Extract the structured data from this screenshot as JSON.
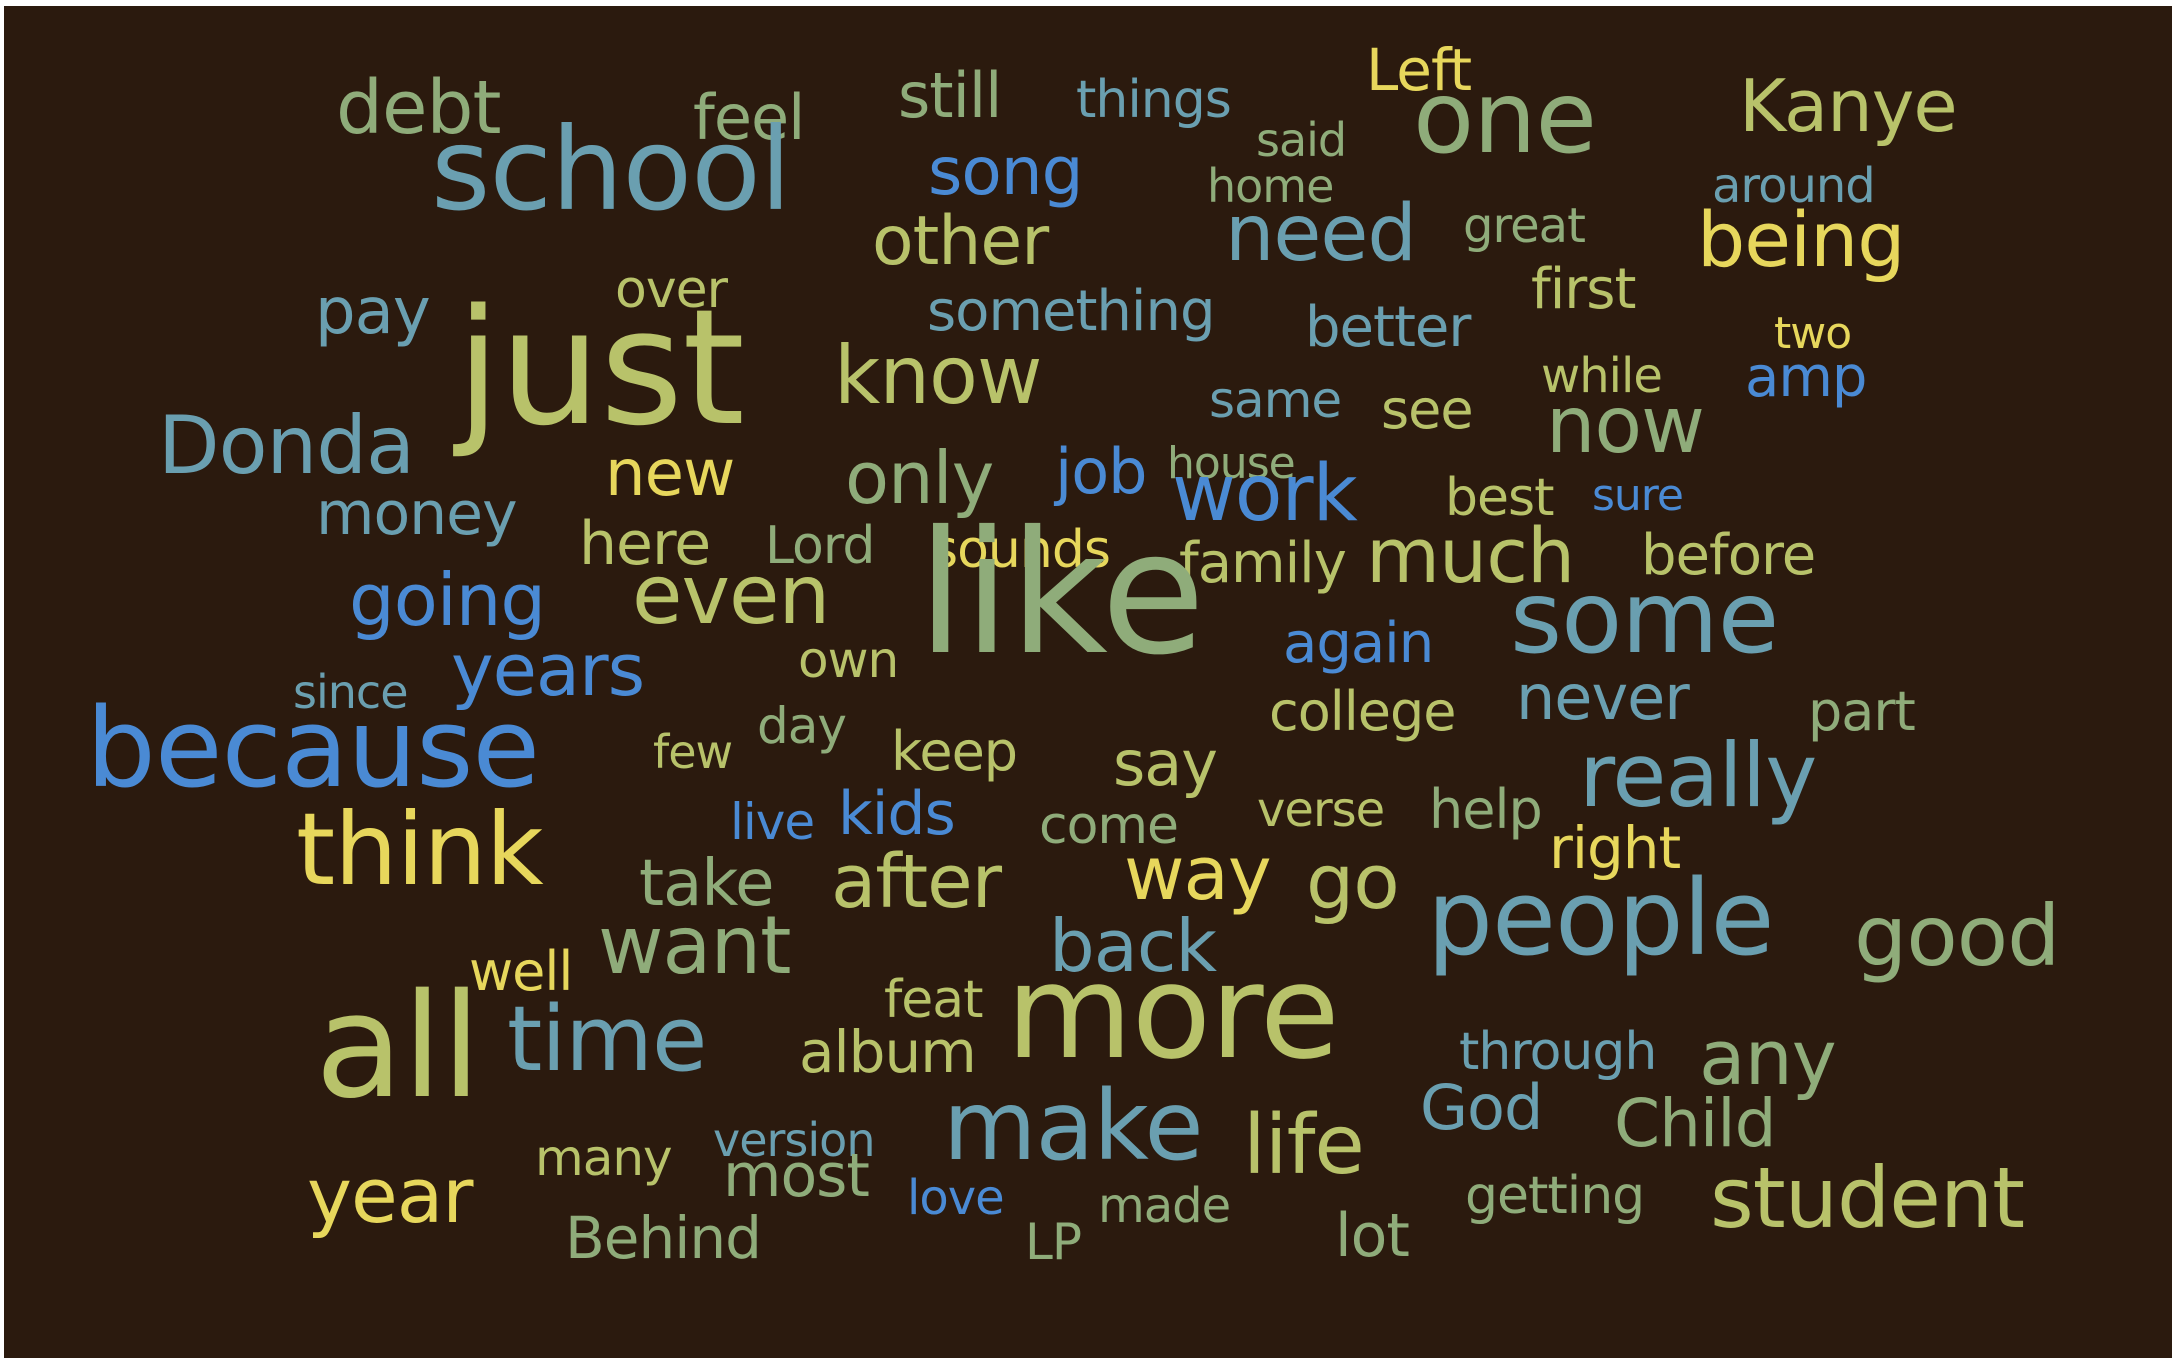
{
  "palette": {
    "background": "#2b1a0e",
    "green": "#8fac7a",
    "olive": "#b8c26a",
    "yellow": "#e7d75c",
    "teal": "#6a9fb0",
    "blue": "#4a8ad4"
  },
  "words": [
    {
      "text": "debt",
      "color": "green"
    },
    {
      "text": "feel",
      "color": "green"
    },
    {
      "text": "still",
      "color": "green"
    },
    {
      "text": "things",
      "color": "teal"
    },
    {
      "text": "said",
      "color": "green"
    },
    {
      "text": "Left",
      "color": "yellow"
    },
    {
      "text": "one",
      "color": "green"
    },
    {
      "text": "Kanye",
      "color": "olive"
    },
    {
      "text": "school",
      "color": "teal"
    },
    {
      "text": "song",
      "color": "blue"
    },
    {
      "text": "home",
      "color": "green"
    },
    {
      "text": "around",
      "color": "teal"
    },
    {
      "text": "other",
      "color": "olive"
    },
    {
      "text": "need",
      "color": "teal"
    },
    {
      "text": "great",
      "color": "green"
    },
    {
      "text": "being",
      "color": "yellow"
    },
    {
      "text": "over",
      "color": "olive"
    },
    {
      "text": "first",
      "color": "olive"
    },
    {
      "text": "pay",
      "color": "teal"
    },
    {
      "text": "something",
      "color": "teal"
    },
    {
      "text": "better",
      "color": "teal"
    },
    {
      "text": "two",
      "color": "yellow"
    },
    {
      "text": "just",
      "color": "olive"
    },
    {
      "text": "know",
      "color": "olive"
    },
    {
      "text": "while",
      "color": "olive"
    },
    {
      "text": "amp",
      "color": "blue"
    },
    {
      "text": "same",
      "color": "teal"
    },
    {
      "text": "see",
      "color": "olive"
    },
    {
      "text": "now",
      "color": "green"
    },
    {
      "text": "Donda",
      "color": "teal"
    },
    {
      "text": "new",
      "color": "yellow"
    },
    {
      "text": "only",
      "color": "green"
    },
    {
      "text": "job",
      "color": "blue"
    },
    {
      "text": "house",
      "color": "green"
    },
    {
      "text": "money",
      "color": "teal"
    },
    {
      "text": "work",
      "color": "blue"
    },
    {
      "text": "best",
      "color": "olive"
    },
    {
      "text": "sure",
      "color": "blue"
    },
    {
      "text": "here",
      "color": "olive"
    },
    {
      "text": "Lord",
      "color": "green"
    },
    {
      "text": "sounds",
      "color": "yellow"
    },
    {
      "text": "before",
      "color": "olive"
    },
    {
      "text": "family",
      "color": "olive"
    },
    {
      "text": "much",
      "color": "olive"
    },
    {
      "text": "going",
      "color": "blue"
    },
    {
      "text": "even",
      "color": "olive"
    },
    {
      "text": "like",
      "color": "green"
    },
    {
      "text": "some",
      "color": "teal"
    },
    {
      "text": "again",
      "color": "blue"
    },
    {
      "text": "own",
      "color": "olive"
    },
    {
      "text": "since",
      "color": "teal"
    },
    {
      "text": "years",
      "color": "blue"
    },
    {
      "text": "college",
      "color": "olive"
    },
    {
      "text": "never",
      "color": "teal"
    },
    {
      "text": "part",
      "color": "green"
    },
    {
      "text": "day",
      "color": "green"
    },
    {
      "text": "few",
      "color": "olive"
    },
    {
      "text": "keep",
      "color": "olive"
    },
    {
      "text": "because",
      "color": "blue"
    },
    {
      "text": "say",
      "color": "olive"
    },
    {
      "text": "really",
      "color": "teal"
    },
    {
      "text": "verse",
      "color": "olive"
    },
    {
      "text": "help",
      "color": "green"
    },
    {
      "text": "live",
      "color": "blue"
    },
    {
      "text": "kids",
      "color": "blue"
    },
    {
      "text": "come",
      "color": "green"
    },
    {
      "text": "right",
      "color": "yellow"
    },
    {
      "text": "think",
      "color": "yellow"
    },
    {
      "text": "take",
      "color": "green"
    },
    {
      "text": "after",
      "color": "olive"
    },
    {
      "text": "way",
      "color": "yellow"
    },
    {
      "text": "go",
      "color": "olive"
    },
    {
      "text": "people",
      "color": "teal"
    },
    {
      "text": "good",
      "color": "green"
    },
    {
      "text": "well",
      "color": "yellow"
    },
    {
      "text": "want",
      "color": "green"
    },
    {
      "text": "back",
      "color": "teal"
    },
    {
      "text": "feat",
      "color": "olive"
    },
    {
      "text": "all",
      "color": "olive"
    },
    {
      "text": "time",
      "color": "teal"
    },
    {
      "text": "album",
      "color": "olive"
    },
    {
      "text": "more",
      "color": "olive"
    },
    {
      "text": "through",
      "color": "teal"
    },
    {
      "text": "any",
      "color": "green"
    },
    {
      "text": "God",
      "color": "teal"
    },
    {
      "text": "Child",
      "color": "green"
    },
    {
      "text": "many",
      "color": "olive"
    },
    {
      "text": "version",
      "color": "teal"
    },
    {
      "text": "make",
      "color": "teal"
    },
    {
      "text": "life",
      "color": "olive"
    },
    {
      "text": "most",
      "color": "green"
    },
    {
      "text": "year",
      "color": "yellow"
    },
    {
      "text": "love",
      "color": "blue"
    },
    {
      "text": "made",
      "color": "green"
    },
    {
      "text": "getting",
      "color": "green"
    },
    {
      "text": "student",
      "color": "olive"
    },
    {
      "text": "Behind",
      "color": "green"
    },
    {
      "text": "LP",
      "color": "green"
    },
    {
      "text": "lot",
      "color": "green"
    }
  ]
}
